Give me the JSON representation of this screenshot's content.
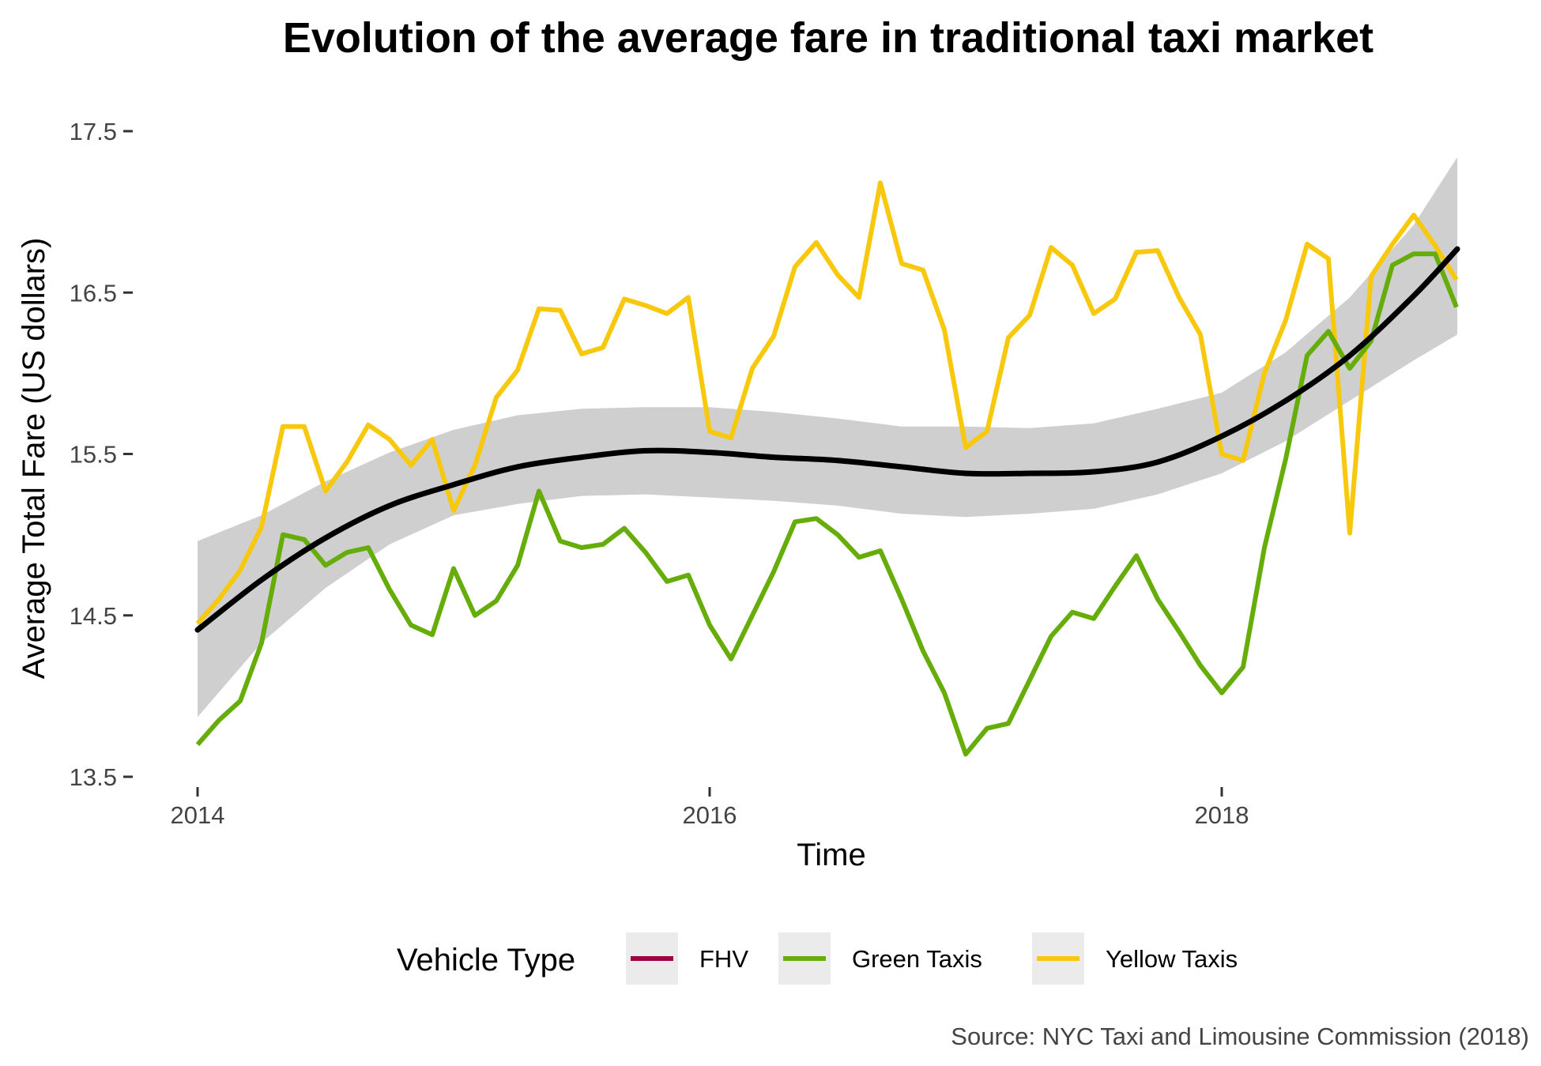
{
  "chart_data": {
    "type": "line",
    "title": "Evolution of the average fare in traditional taxi market",
    "xlabel": "Time",
    "ylabel": "Average Total Fare (US dollars)",
    "caption": "Source: NYC Taxi and Limousine Commission (2018)",
    "xlim": [
      2014,
      2019
    ],
    "ylim": [
      13.5,
      17.5
    ],
    "x_ticks": [
      {
        "value": 2014,
        "label": "2014"
      },
      {
        "value": 2016,
        "label": "2016"
      },
      {
        "value": 2018,
        "label": "2018"
      }
    ],
    "y_ticks": [
      {
        "value": 13.5,
        "label": "13.5"
      },
      {
        "value": 14.5,
        "label": "14.5"
      },
      {
        "value": 15.5,
        "label": "15.5"
      },
      {
        "value": 16.5,
        "label": "16.5"
      },
      {
        "value": 17.5,
        "label": "17.5"
      }
    ],
    "grid": false,
    "legend": {
      "title": "Vehicle Type",
      "position": "bottom",
      "entries": [
        {
          "label": "FHV",
          "color": "#9e0142"
        },
        {
          "label": "Green Taxis",
          "color": "#66ad0a"
        },
        {
          "label": "Yellow Taxis",
          "color": "#f8c80c"
        }
      ]
    },
    "x_start": 2014,
    "x_step_months": 1,
    "series": [
      {
        "name": "Yellow Taxis",
        "color": "#f8c80c",
        "values": [
          14.45,
          14.6,
          14.78,
          15.05,
          15.67,
          15.67,
          15.27,
          15.45,
          15.68,
          15.59,
          15.43,
          15.59,
          15.15,
          15.43,
          15.85,
          16.02,
          16.4,
          16.39,
          16.12,
          16.16,
          16.46,
          16.42,
          16.37,
          16.47,
          15.64,
          15.6,
          16.03,
          16.23,
          16.66,
          16.81,
          16.61,
          16.47,
          17.18,
          16.68,
          16.64,
          16.27,
          15.54,
          15.64,
          16.22,
          16.36,
          16.78,
          16.67,
          16.37,
          16.46,
          16.75,
          16.76,
          16.47,
          16.24,
          15.5,
          15.46,
          16.0,
          16.33,
          16.8,
          16.71,
          15.01,
          16.6,
          16.8,
          16.98,
          16.79,
          16.58
        ]
      },
      {
        "name": "Green Taxis",
        "color": "#66ad0a",
        "values": [
          13.7,
          13.85,
          13.97,
          14.33,
          15.0,
          14.97,
          14.81,
          14.89,
          14.92,
          14.66,
          14.44,
          14.38,
          14.79,
          14.5,
          14.59,
          14.81,
          15.27,
          14.96,
          14.92,
          14.94,
          15.04,
          14.89,
          14.71,
          14.75,
          14.44,
          14.23,
          14.5,
          14.77,
          15.08,
          15.1,
          15.0,
          14.86,
          14.9,
          14.6,
          14.28,
          14.02,
          13.64,
          13.8,
          13.83,
          14.1,
          14.37,
          14.52,
          14.48,
          14.68,
          14.87,
          14.6,
          14.4,
          14.19,
          14.02,
          14.18,
          14.92,
          15.47,
          16.11,
          16.26,
          16.03,
          16.2,
          16.67,
          16.74,
          16.74,
          16.41
        ]
      }
    ],
    "trend": {
      "x": [
        2014.0,
        2014.25,
        2014.5,
        2014.75,
        2015.0,
        2015.25,
        2015.5,
        2015.75,
        2016.0,
        2016.25,
        2016.5,
        2016.75,
        2017.0,
        2017.25,
        2017.5,
        2017.75,
        2018.0,
        2018.25,
        2018.5,
        2018.75,
        2018.92
      ],
      "y": [
        14.41,
        14.72,
        14.98,
        15.18,
        15.31,
        15.42,
        15.48,
        15.52,
        15.51,
        15.48,
        15.46,
        15.42,
        15.38,
        15.38,
        15.39,
        15.45,
        15.61,
        15.83,
        16.11,
        16.48,
        16.77
      ],
      "lower": [
        13.87,
        14.33,
        14.67,
        14.94,
        15.12,
        15.19,
        15.24,
        15.25,
        15.23,
        15.21,
        15.18,
        15.13,
        15.11,
        15.13,
        15.16,
        15.25,
        15.38,
        15.58,
        15.83,
        16.08,
        16.24
      ],
      "upper": [
        14.96,
        15.12,
        15.33,
        15.51,
        15.65,
        15.74,
        15.78,
        15.79,
        15.79,
        15.76,
        15.72,
        15.67,
        15.67,
        15.66,
        15.69,
        15.78,
        15.88,
        16.13,
        16.47,
        16.92,
        17.34
      ],
      "color": "#000000",
      "band_color": "#bdbdbd"
    }
  }
}
